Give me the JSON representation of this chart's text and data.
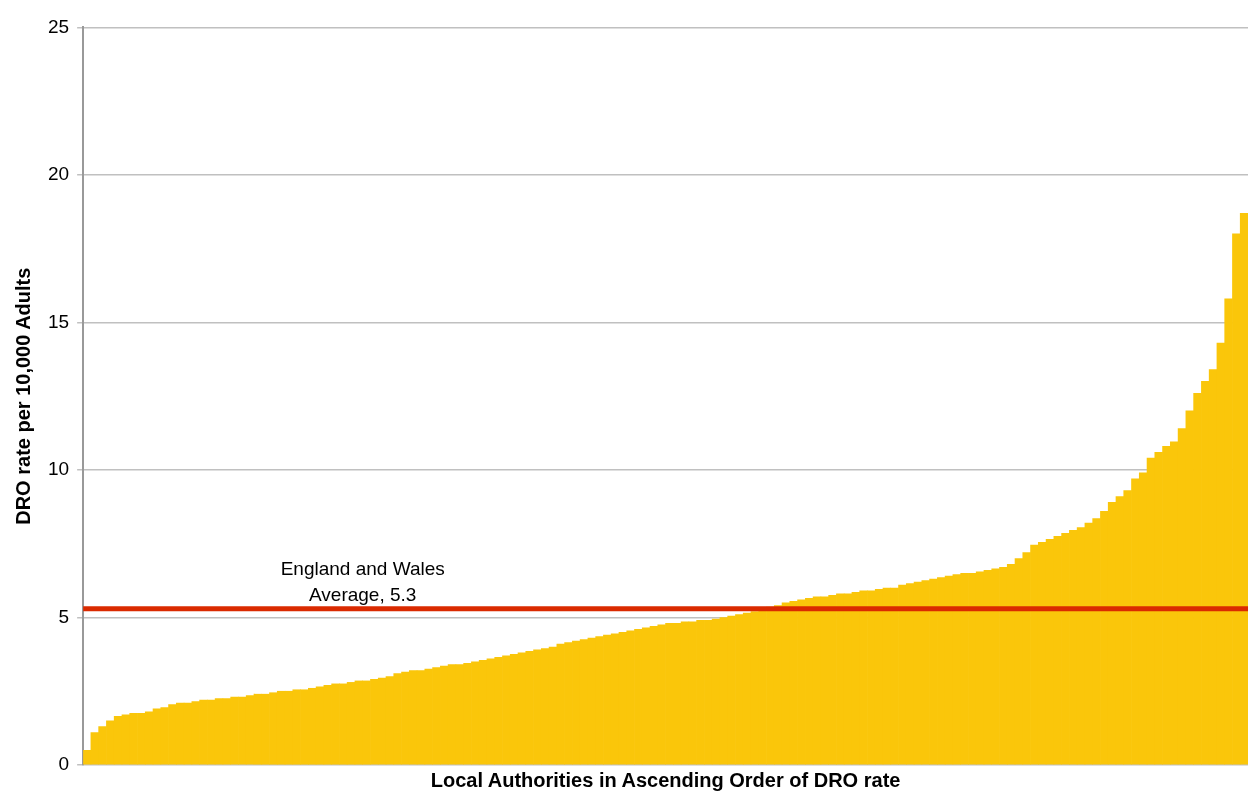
{
  "chart_data": {
    "type": "bar",
    "xlabel": "Local Authorities in Ascending Order of DRO rate",
    "ylabel": "DRO rate per 10,000 Adults",
    "categories": [
      null,
      null,
      null,
      null,
      null,
      null,
      null,
      null,
      null,
      null,
      null,
      null,
      null,
      null,
      null,
      null,
      null,
      null,
      null,
      null,
      null,
      null,
      null,
      null,
      null,
      null,
      null,
      null,
      null,
      null,
      null,
      null,
      null,
      null,
      null,
      null,
      null,
      null,
      null,
      null,
      null,
      null,
      null,
      null,
      null,
      null,
      null,
      null,
      null,
      null,
      null,
      null,
      null,
      null,
      null,
      null,
      null,
      null,
      null,
      null,
      null,
      null,
      null,
      null,
      null,
      null,
      null,
      null,
      null,
      null,
      null,
      null,
      null,
      null,
      null,
      null,
      null,
      null,
      null,
      null,
      null,
      null,
      null,
      null,
      null,
      null,
      null,
      null,
      null,
      null,
      null,
      null,
      null,
      null,
      null,
      null,
      null,
      null,
      null,
      null,
      null,
      null,
      null,
      null,
      null,
      null,
      null,
      null,
      null,
      null,
      null,
      null,
      null,
      null,
      null,
      null,
      null,
      null,
      null,
      null,
      null,
      null,
      null,
      null,
      null,
      null,
      null,
      null,
      null,
      null,
      null,
      null,
      null,
      null,
      null,
      null,
      null,
      null,
      null,
      null,
      null,
      null,
      null,
      null,
      null,
      null,
      null,
      null,
      null,
      null
    ],
    "values": [
      0.5,
      1.1,
      1.3,
      1.5,
      1.65,
      1.7,
      1.75,
      1.75,
      1.8,
      1.9,
      1.95,
      2.05,
      2.1,
      2.1,
      2.15,
      2.2,
      2.2,
      2.25,
      2.25,
      2.3,
      2.3,
      2.35,
      2.4,
      2.4,
      2.45,
      2.5,
      2.5,
      2.55,
      2.55,
      2.6,
      2.65,
      2.7,
      2.75,
      2.75,
      2.8,
      2.85,
      2.85,
      2.9,
      2.95,
      3.0,
      3.1,
      3.15,
      3.2,
      3.2,
      3.25,
      3.3,
      3.35,
      3.4,
      3.4,
      3.45,
      3.5,
      3.55,
      3.6,
      3.65,
      3.7,
      3.75,
      3.8,
      3.85,
      3.9,
      3.95,
      4.0,
      4.1,
      4.15,
      4.2,
      4.25,
      4.3,
      4.35,
      4.4,
      4.45,
      4.5,
      4.55,
      4.6,
      4.65,
      4.7,
      4.75,
      4.8,
      4.8,
      4.85,
      4.85,
      4.9,
      4.9,
      4.95,
      5.0,
      5.05,
      5.1,
      5.15,
      5.2,
      5.3,
      5.35,
      5.4,
      5.5,
      5.55,
      5.6,
      5.65,
      5.7,
      5.7,
      5.75,
      5.8,
      5.8,
      5.85,
      5.9,
      5.9,
      5.95,
      6.0,
      6.0,
      6.1,
      6.15,
      6.2,
      6.25,
      6.3,
      6.35,
      6.4,
      6.45,
      6.5,
      6.5,
      6.55,
      6.6,
      6.65,
      6.7,
      6.8,
      7.0,
      7.2,
      7.45,
      7.55,
      7.65,
      7.75,
      7.85,
      7.95,
      8.05,
      8.2,
      8.35,
      8.6,
      8.9,
      9.1,
      9.3,
      9.7,
      9.9,
      10.4,
      10.6,
      10.8,
      10.95,
      11.4,
      12.0,
      12.6,
      13.0,
      13.4,
      14.3,
      15.8,
      18.0,
      18.7
    ],
    "color": "#fac60a",
    "ylim": [
      0,
      25
    ],
    "yticks": [
      0,
      5,
      10,
      15,
      20,
      25
    ],
    "grid": "y",
    "legend": false,
    "ref_lines": [
      {
        "axis": "y",
        "value": 5.3,
        "label": "England and Wales Average, 5.3",
        "color": "#da2a00",
        "line_style": "solid"
      }
    ]
  }
}
